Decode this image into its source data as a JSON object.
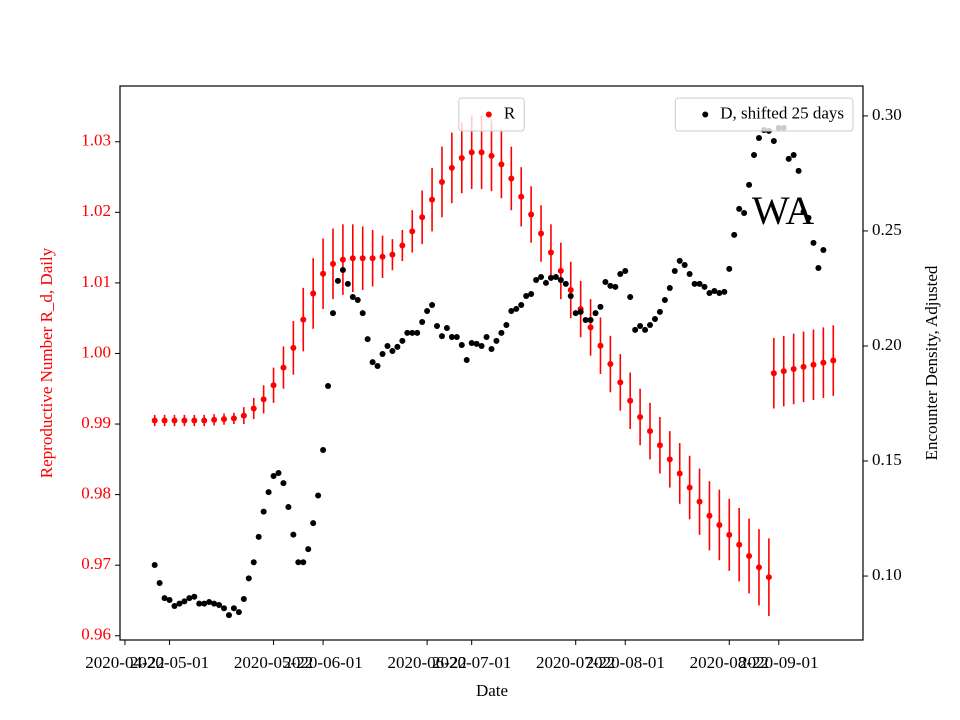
{
  "chart_data": {
    "type": "errorbar-dual",
    "xlabel": "Date",
    "ylabel": "Reproductive Number R_d, Daily",
    "y2label": "Encounter Density, Adjusted",
    "annotation": "WA",
    "xlim": [
      "2020-04-21",
      "2020-09-18"
    ],
    "xticks": [
      "2020-04-22",
      "2020-05-01",
      "2020-05-22",
      "2020-06-01",
      "2020-06-22",
      "2020-07-01",
      "2020-07-22",
      "2020-08-01",
      "2020-08-22",
      "2020-09-01"
    ],
    "ylim": [
      0.9594,
      1.0379
    ],
    "yticks": [
      0.96,
      0.97,
      0.98,
      0.99,
      {
        "value": 1.0,
        "label": "1.00"
      },
      1.01,
      1.02,
      1.03
    ],
    "ylabel_color": "#ff0000",
    "y2lim": [
      0.0722,
      0.313
    ],
    "y2ticks": [
      {
        "value": 0.1,
        "label": "0.10"
      },
      0.15,
      {
        "value": 0.2,
        "label": "0.20"
      },
      0.25,
      {
        "value": 0.3,
        "label": "0.30"
      }
    ],
    "series": [
      {
        "name": "R",
        "color": "#ff0000",
        "axis": "y",
        "legend_loc": "upper center",
        "x": [
          "2020-04-28",
          "2020-04-30",
          "2020-05-02",
          "2020-05-04",
          "2020-05-06",
          "2020-05-08",
          "2020-05-10",
          "2020-05-12",
          "2020-05-14",
          "2020-05-16",
          "2020-05-18",
          "2020-05-20",
          "2020-05-22",
          "2020-05-24",
          "2020-05-26",
          "2020-05-28",
          "2020-05-30",
          "2020-06-01",
          "2020-06-03",
          "2020-06-05",
          "2020-06-07",
          "2020-06-09",
          "2020-06-11",
          "2020-06-13",
          "2020-06-15",
          "2020-06-17",
          "2020-06-19",
          "2020-06-21",
          "2020-06-23",
          "2020-06-25",
          "2020-06-27",
          "2020-06-29",
          "2020-07-01",
          "2020-07-03",
          "2020-07-05",
          "2020-07-07",
          "2020-07-09",
          "2020-07-11",
          "2020-07-13",
          "2020-07-15",
          "2020-07-17",
          "2020-07-19",
          "2020-07-21",
          "2020-07-23",
          "2020-07-25",
          "2020-07-27",
          "2020-07-29",
          "2020-07-31",
          "2020-08-02",
          "2020-08-04",
          "2020-08-06",
          "2020-08-08",
          "2020-08-10",
          "2020-08-12",
          "2020-08-14",
          "2020-08-16",
          "2020-08-18",
          "2020-08-20",
          "2020-08-22",
          "2020-08-24",
          "2020-08-26",
          "2020-08-28",
          "2020-08-30"
        ],
        "values": [
          0.9905,
          0.9905,
          0.9905,
          0.9905,
          0.9905,
          0.9905,
          0.9906,
          0.9907,
          0.9908,
          0.9912,
          0.9922,
          0.9935,
          0.9955,
          0.998,
          1.0008,
          1.0048,
          1.0085,
          1.0113,
          1.0127,
          1.0133,
          1.0135,
          1.0135,
          1.0135,
          1.0137,
          1.014,
          1.0153,
          1.0173,
          1.0193,
          1.0218,
          1.0243,
          1.0263,
          1.0277,
          1.0285,
          1.0285,
          1.028,
          1.0268,
          1.0248,
          1.0222,
          1.0197,
          1.017,
          1.0143,
          1.0117,
          1.009,
          1.0063,
          1.0037,
          1.0011,
          0.9985,
          0.9959,
          0.9933,
          0.991,
          0.989,
          0.987,
          0.985,
          0.983,
          0.981,
          0.979,
          0.977,
          0.9757,
          0.9743,
          0.9729,
          0.9713,
          0.9697,
          0.9683
        ],
        "errors": [
          0.0008,
          0.0008,
          0.0008,
          0.0008,
          0.0008,
          0.0008,
          0.0008,
          0.0008,
          0.0008,
          0.0012,
          0.0015,
          0.002,
          0.0025,
          0.003,
          0.0038,
          0.0045,
          0.005,
          0.005,
          0.005,
          0.005,
          0.0048,
          0.0045,
          0.004,
          0.003,
          0.0022,
          0.0022,
          0.003,
          0.0038,
          0.0045,
          0.005,
          0.005,
          0.005,
          0.0052,
          0.0052,
          0.005,
          0.0048,
          0.0045,
          0.0042,
          0.004,
          0.004,
          0.004,
          0.004,
          0.004,
          0.004,
          0.004,
          0.004,
          0.004,
          0.004,
          0.004,
          0.004,
          0.004,
          0.004,
          0.004,
          0.0043,
          0.0045,
          0.0047,
          0.0049,
          0.005,
          0.0051,
          0.0052,
          0.0053,
          0.0054,
          0.0055
        ]
      },
      {
        "color": "#ff0000",
        "axis": "y",
        "x": [
          "2020-08-31",
          "2020-09-02",
          "2020-09-04",
          "2020-09-06",
          "2020-09-08",
          "2020-09-10",
          "2020-09-12"
        ],
        "values": [
          0.9972,
          0.9975,
          0.9978,
          0.9981,
          0.9984,
          0.9987,
          0.999
        ],
        "errors": [
          0.005,
          0.005,
          0.005,
          0.005,
          0.005,
          0.005,
          0.005
        ]
      },
      {
        "name": "D, shifted 25 days",
        "color": "#000000",
        "axis": "y2",
        "legend_loc": "upper right",
        "x": [
          "2020-04-28",
          "2020-04-29",
          "2020-04-30",
          "2020-05-01",
          "2020-05-02",
          "2020-05-03",
          "2020-05-04",
          "2020-05-05",
          "2020-05-06",
          "2020-05-07",
          "2020-05-08",
          "2020-05-09",
          "2020-05-10",
          "2020-05-11",
          "2020-05-12",
          "2020-05-13",
          "2020-05-14",
          "2020-05-15",
          "2020-05-16",
          "2020-05-17",
          "2020-05-18",
          "2020-05-19",
          "2020-05-20",
          "2020-05-21",
          "2020-05-22",
          "2020-05-23",
          "2020-05-24",
          "2020-05-25",
          "2020-05-26",
          "2020-05-27",
          "2020-05-28",
          "2020-05-29",
          "2020-05-30",
          "2020-05-31",
          "2020-06-01",
          "2020-06-02",
          "2020-06-03",
          "2020-06-04",
          "2020-06-05",
          "2020-06-06",
          "2020-06-07",
          "2020-06-08",
          "2020-06-09",
          "2020-06-10",
          "2020-06-11",
          "2020-06-12",
          "2020-06-13",
          "2020-06-14",
          "2020-06-15",
          "2020-06-16",
          "2020-06-17",
          "2020-06-18",
          "2020-06-19",
          "2020-06-20",
          "2020-06-21",
          "2020-06-22",
          "2020-06-23",
          "2020-06-24",
          "2020-06-25",
          "2020-06-26",
          "2020-06-27",
          "2020-06-28",
          "2020-06-29",
          "2020-06-30",
          "2020-07-01",
          "2020-07-02",
          "2020-07-03",
          "2020-07-04",
          "2020-07-05",
          "2020-07-06",
          "2020-07-07",
          "2020-07-08",
          "2020-07-09",
          "2020-07-10",
          "2020-07-11",
          "2020-07-12",
          "2020-07-13",
          "2020-07-14",
          "2020-07-15",
          "2020-07-16",
          "2020-07-17",
          "2020-07-18",
          "2020-07-19",
          "2020-07-20",
          "2020-07-21",
          "2020-07-22",
          "2020-07-23",
          "2020-07-24",
          "2020-07-25",
          "2020-07-26",
          "2020-07-27",
          "2020-07-28",
          "2020-07-29",
          "2020-07-30",
          "2020-07-31",
          "2020-08-01",
          "2020-08-02",
          "2020-08-03",
          "2020-08-04",
          "2020-08-05",
          "2020-08-06",
          "2020-08-07",
          "2020-08-08",
          "2020-08-09",
          "2020-08-10",
          "2020-08-11",
          "2020-08-12",
          "2020-08-13",
          "2020-08-14",
          "2020-08-15",
          "2020-08-16",
          "2020-08-17",
          "2020-08-18",
          "2020-08-19",
          "2020-08-20",
          "2020-08-21",
          "2020-08-22",
          "2020-08-23",
          "2020-08-24",
          "2020-08-25",
          "2020-08-26",
          "2020-08-27",
          "2020-08-28",
          "2020-08-29",
          "2020-08-30",
          "2020-08-31",
          "2020-09-01",
          "2020-09-02",
          "2020-09-03",
          "2020-09-04",
          "2020-09-05",
          "2020-09-06",
          "2020-09-07",
          "2020-09-08",
          "2020-09-09",
          "2020-09-10"
        ],
        "values": [
          0.1048,
          0.097,
          0.0904,
          0.0896,
          0.087,
          0.088,
          0.089,
          0.0904,
          0.091,
          0.088,
          0.088,
          0.0887,
          0.088,
          0.0874,
          0.086,
          0.083,
          0.086,
          0.0843,
          0.09,
          0.099,
          0.106,
          0.117,
          0.128,
          0.1365,
          0.1435,
          0.1448,
          0.1404,
          0.13,
          0.118,
          0.106,
          0.106,
          0.1117,
          0.123,
          0.135,
          0.1548,
          0.1826,
          0.2143,
          0.2283,
          0.233,
          0.227,
          0.2213,
          0.22,
          0.2143,
          0.203,
          0.193,
          0.1913,
          0.1965,
          0.2,
          0.1978,
          0.1996,
          0.2022,
          0.2057,
          0.2057,
          0.2057,
          0.2104,
          0.2152,
          0.2178,
          0.2087,
          0.2043,
          0.2078,
          0.2039,
          0.2039,
          0.2004,
          0.1939,
          0.2013,
          0.2009,
          0.2,
          0.2039,
          0.1987,
          0.2022,
          0.2057,
          0.2091,
          0.2152,
          0.2161,
          0.2178,
          0.2217,
          0.2226,
          0.2287,
          0.23,
          0.2274,
          0.2296,
          0.23,
          0.2287,
          0.227,
          0.2217,
          0.2143,
          0.2148,
          0.2113,
          0.2113,
          0.2143,
          0.217,
          0.2278,
          0.2261,
          0.2257,
          0.2313,
          0.2326,
          0.2213,
          0.207,
          0.2087,
          0.207,
          0.2091,
          0.2117,
          0.2148,
          0.22,
          0.2252,
          0.2326,
          0.237,
          0.2352,
          0.2313,
          0.227,
          0.227,
          0.2257,
          0.223,
          0.2239,
          0.223,
          0.2235,
          0.2335,
          0.2483,
          0.2596,
          0.2578,
          0.27,
          0.283,
          0.2904,
          0.2939,
          0.2935,
          0.2891,
          0.2948,
          0.2948,
          0.2813,
          0.283,
          0.2761,
          0.2583,
          0.2557,
          0.2448,
          0.2339,
          0.2417
        ]
      }
    ]
  }
}
